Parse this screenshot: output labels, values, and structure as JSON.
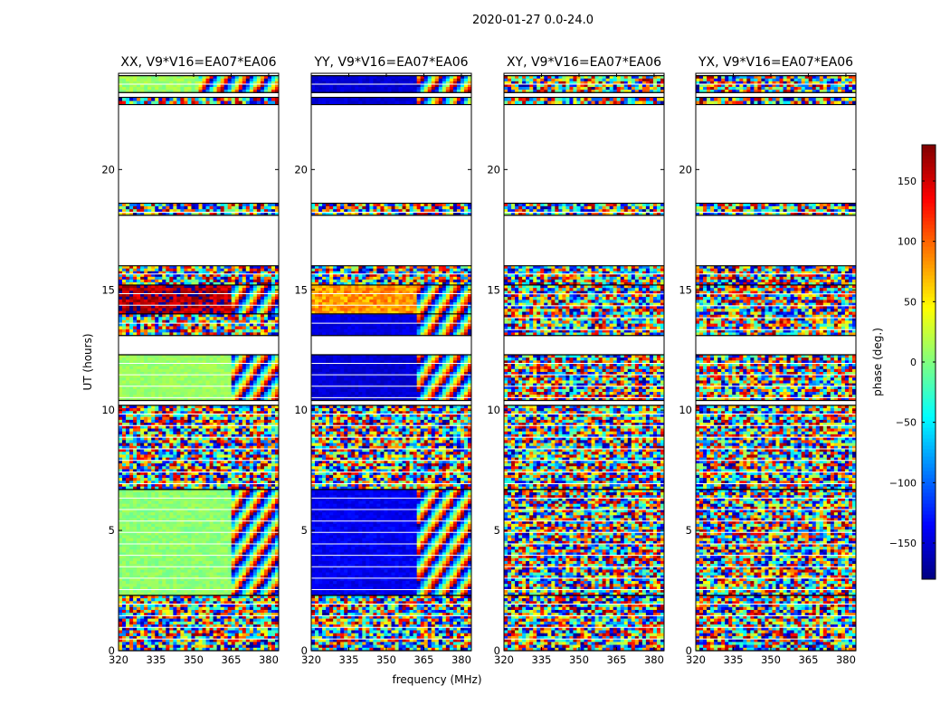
{
  "chart_data": {
    "type": "heatmap",
    "suptitle": "2020-01-27 0.0-24.0",
    "xlabel": "frequency (MHz)",
    "ylabel": "UT (hours)",
    "xlim": [
      320,
      384
    ],
    "ylim": [
      0,
      24
    ],
    "xticks": [
      320,
      335,
      350,
      365,
      380
    ],
    "yticks": [
      0,
      5,
      10,
      15,
      20
    ],
    "panels": [
      {
        "title": "XX, V9*V16=EA07*EA06",
        "pattern": [
          {
            "t0": 0.0,
            "t1": 2.3,
            "mode": "noise",
            "base": 0
          },
          {
            "t0": 2.3,
            "t1": 6.7,
            "mode": "smooth",
            "base": 5,
            "spread": 12,
            "edge": 364.5,
            "after": "fringe"
          },
          {
            "t0": 6.7,
            "t1": 10.2,
            "mode": "noise",
            "base": 0
          },
          {
            "t0": 10.4,
            "t1": 12.3,
            "mode": "smooth",
            "base": 10,
            "spread": 10,
            "edge": 364.5,
            "after": "fringe"
          },
          {
            "t0": 13.1,
            "t1": 14.0,
            "mode": "noise",
            "base": -60
          },
          {
            "t0": 14.0,
            "t1": 15.2,
            "mode": "smooth",
            "base": 165,
            "spread": 30,
            "edge": 364.5,
            "after": "fringe"
          },
          {
            "t0": 15.2,
            "t1": 16.0,
            "mode": "noise",
            "base": 0
          },
          {
            "t0": 18.1,
            "t1": 18.6,
            "mode": "noise",
            "base": 0
          },
          {
            "t0": 22.7,
            "t1": 23.0,
            "mode": "noise",
            "base": 0
          },
          {
            "t0": 23.2,
            "t1": 23.9,
            "mode": "smooth",
            "base": 10,
            "spread": 15,
            "edge": 352,
            "after": "fringe"
          }
        ]
      },
      {
        "title": "YY, V9*V16=EA07*EA06",
        "pattern": [
          {
            "t0": 0.0,
            "t1": 2.3,
            "mode": "noise",
            "base": 0
          },
          {
            "t0": 2.3,
            "t1": 6.7,
            "mode": "smooth",
            "base": -140,
            "spread": 12,
            "edge": 362,
            "after": "fringe"
          },
          {
            "t0": 6.7,
            "t1": 10.2,
            "mode": "noise",
            "base": 0
          },
          {
            "t0": 10.4,
            "t1": 12.3,
            "mode": "smooth",
            "base": -150,
            "spread": 10,
            "edge": 362,
            "after": "fringe"
          },
          {
            "t0": 13.1,
            "t1": 14.0,
            "mode": "smooth",
            "base": -145,
            "spread": 10,
            "edge": 362,
            "after": "fringe"
          },
          {
            "t0": 14.0,
            "t1": 15.2,
            "mode": "smooth",
            "base": 80,
            "spread": 25,
            "edge": 362,
            "after": "fringe"
          },
          {
            "t0": 15.2,
            "t1": 16.0,
            "mode": "noise",
            "base": 0
          },
          {
            "t0": 18.1,
            "t1": 18.6,
            "mode": "noise",
            "base": 0
          },
          {
            "t0": 22.7,
            "t1": 23.0,
            "mode": "smooth",
            "base": -150,
            "spread": 10,
            "edge": 362,
            "after": "fringe"
          },
          {
            "t0": 23.2,
            "t1": 23.9,
            "mode": "smooth",
            "base": -150,
            "spread": 10,
            "edge": 362,
            "after": "fringe"
          }
        ]
      },
      {
        "title": "XY, V9*V16=EA07*EA06",
        "pattern": [
          {
            "t0": 0.0,
            "t1": 2.3,
            "mode": "noise",
            "base": 0
          },
          {
            "t0": 2.3,
            "t1": 6.7,
            "mode": "noise",
            "base": 0
          },
          {
            "t0": 6.7,
            "t1": 10.2,
            "mode": "noise",
            "base": 0
          },
          {
            "t0": 10.4,
            "t1": 12.3,
            "mode": "noise",
            "base": -60
          },
          {
            "t0": 13.1,
            "t1": 15.2,
            "mode": "noise",
            "base": 60
          },
          {
            "t0": 15.2,
            "t1": 16.0,
            "mode": "noise",
            "base": 0
          },
          {
            "t0": 18.1,
            "t1": 18.6,
            "mode": "noise",
            "base": 0
          },
          {
            "t0": 22.7,
            "t1": 23.0,
            "mode": "noise",
            "base": 0
          },
          {
            "t0": 23.2,
            "t1": 23.9,
            "mode": "noise",
            "base": 0
          }
        ]
      },
      {
        "title": "YX, V9*V16=EA07*EA06",
        "pattern": [
          {
            "t0": 0.0,
            "t1": 2.3,
            "mode": "noise",
            "base": 0
          },
          {
            "t0": 2.3,
            "t1": 6.7,
            "mode": "noise",
            "base": 60
          },
          {
            "t0": 6.7,
            "t1": 10.2,
            "mode": "noise",
            "base": 0
          },
          {
            "t0": 10.4,
            "t1": 12.3,
            "mode": "noise",
            "base": 60
          },
          {
            "t0": 13.1,
            "t1": 15.2,
            "mode": "noise",
            "base": -60
          },
          {
            "t0": 15.2,
            "t1": 16.0,
            "mode": "noise",
            "base": 0
          },
          {
            "t0": 18.1,
            "t1": 18.6,
            "mode": "noise",
            "base": 0
          },
          {
            "t0": 22.7,
            "t1": 23.0,
            "mode": "noise",
            "base": 0
          },
          {
            "t0": 23.2,
            "t1": 23.9,
            "mode": "noise",
            "base": 0
          }
        ]
      }
    ],
    "colorbar": {
      "label": "phase (deg.)",
      "range": [
        -180,
        180
      ],
      "ticks": [
        -150,
        -100,
        -50,
        0,
        50,
        100,
        150
      ],
      "tick_labels": [
        "−150",
        "−100",
        "−50",
        "0",
        "50",
        "100",
        "150"
      ],
      "colormap": "jet"
    }
  }
}
